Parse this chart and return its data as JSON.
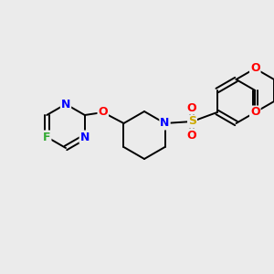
{
  "bg_color": "#ebebeb",
  "bond_color": "#000000",
  "atom_colors": {
    "N": "#0000ff",
    "O": "#ff0000",
    "F": "#33aa33",
    "S": "#ccaa00",
    "C": "#000000"
  }
}
